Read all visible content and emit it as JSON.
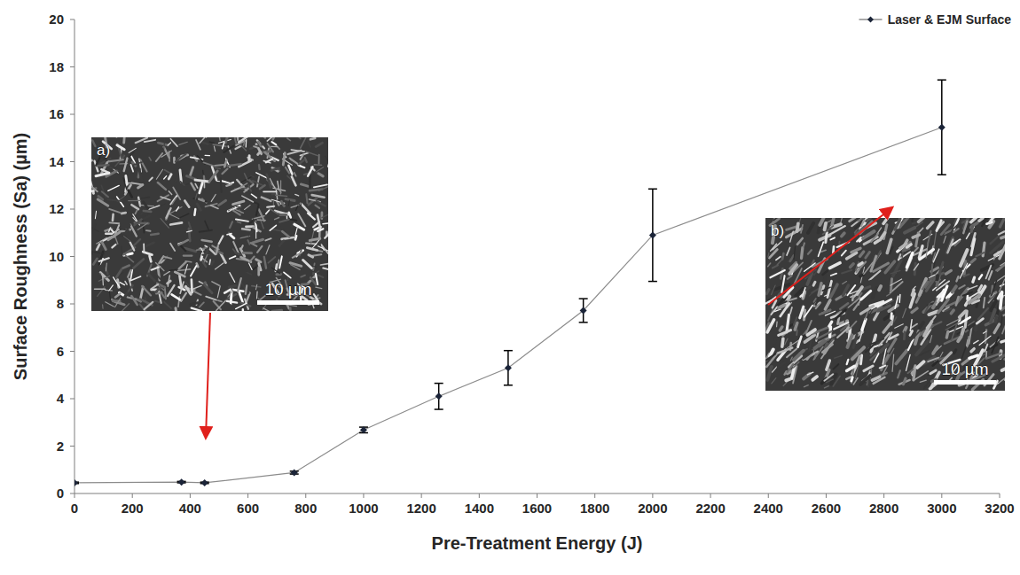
{
  "chart_data": {
    "type": "line",
    "x_label": "Pre-Treatment Energy (J)",
    "y_label": "Surface Roughness (Sa) (µm)",
    "x": [
      0,
      370,
      450,
      760,
      1000,
      1260,
      1500,
      1760,
      2000,
      3000
    ],
    "series": [
      {
        "name": "Laser & EJM Surface",
        "color": "#1b2438",
        "marker": "diamond",
        "line_style": "solid",
        "values": [
          0.45,
          0.48,
          0.45,
          0.88,
          2.68,
          4.1,
          5.3,
          7.72,
          10.9,
          15.45
        ],
        "errors": [
          0.03,
          0.03,
          0.03,
          0.06,
          0.12,
          0.55,
          0.73,
          0.5,
          1.95,
          2.0
        ]
      }
    ],
    "xlim": [
      0,
      3200
    ],
    "xticks": [
      0,
      200,
      400,
      600,
      800,
      1000,
      1200,
      1400,
      1600,
      1800,
      2000,
      2200,
      2400,
      2600,
      2800,
      3000,
      3200
    ],
    "ylim": [
      0,
      20
    ],
    "yticks": [
      0,
      2,
      4,
      6,
      8,
      10,
      12,
      14,
      16,
      18,
      20
    ],
    "grid": false,
    "legend": "top-right",
    "annotations": [
      "a)",
      "10 µm",
      "b)",
      "10 µm"
    ]
  }
}
